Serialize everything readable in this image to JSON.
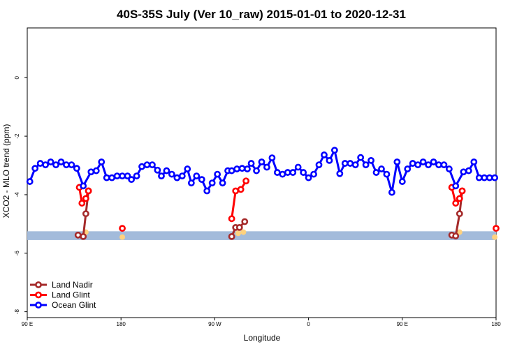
{
  "chart_data": {
    "type": "line",
    "title": "40S-35S July (Ver 10_raw)   2015-01-01 to 2020-12-31",
    "xlabel": "Longitude",
    "ylabel": "XCO2 - MLO trend (ppm)",
    "xlim": [
      90,
      450
    ],
    "ylim": [
      -8.2,
      1.7
    ],
    "x_ticks": [
      {
        "value": 90,
        "label": "90 E"
      },
      {
        "value": 162,
        "label": "180"
      },
      {
        "value": 234,
        "label": "90 W"
      },
      {
        "value": 306,
        "label": "0"
      },
      {
        "value": 378,
        "label": "90 E"
      },
      {
        "value": 450,
        "label": "180"
      }
    ],
    "y_ticks": [
      {
        "value": -8,
        "label": "-8"
      },
      {
        "value": -6,
        "label": "-6"
      },
      {
        "value": -4,
        "label": "-4"
      },
      {
        "value": -2,
        "label": "-2"
      },
      {
        "value": 0,
        "label": "0"
      }
    ],
    "band": {
      "y_low": -5.55,
      "y_high": -5.25,
      "color": "#a3bbdb"
    },
    "legend_position": "bottom-left",
    "grid": false,
    "series": [
      {
        "name": "Land Nadir",
        "color": "#a52a2a",
        "segments": [
          [
            [
              129,
              -5.38
            ],
            [
              133,
              -5.43
            ],
            [
              135,
              -4.65
            ],
            [
              137,
              -3.87
            ]
          ],
          [
            [
              247,
              -5.43
            ],
            [
              250,
              -5.12
            ],
            [
              253,
              -5.12
            ],
            [
              257,
              -4.92
            ]
          ],
          [
            [
              416,
              -5.38
            ],
            [
              419,
              -5.41
            ],
            [
              422,
              -4.65
            ],
            [
              424,
              -3.87
            ]
          ]
        ]
      },
      {
        "name": "Land Glint",
        "color": "#ff0000",
        "segments": [
          [
            [
              130,
              -3.75
            ],
            [
              132,
              -4.29
            ],
            [
              135,
              -4.13
            ],
            [
              137,
              -3.87
            ]
          ],
          [
            [
              163,
              -5.15
            ]
          ],
          [
            [
              247,
              -4.82
            ],
            [
              250,
              -3.87
            ],
            [
              254,
              -3.82
            ],
            [
              258,
              -3.53
            ]
          ],
          [
            [
              416,
              -3.75
            ],
            [
              419,
              -4.29
            ],
            [
              422,
              -4.13
            ],
            [
              424,
              -3.87
            ]
          ],
          [
            [
              450,
              -5.15
            ]
          ]
        ]
      },
      {
        "name": "Ocean Glint",
        "color": "#0000ff",
        "segments": [
          [
            [
              92,
              -3.55
            ],
            [
              96,
              -3.1
            ],
            [
              100,
              -2.93
            ],
            [
              104,
              -2.98
            ],
            [
              108,
              -2.88
            ],
            [
              112,
              -2.98
            ],
            [
              116,
              -2.88
            ],
            [
              120,
              -2.98
            ],
            [
              124,
              -2.98
            ],
            [
              128,
              -3.1
            ],
            [
              133,
              -3.7
            ],
            [
              139,
              -3.22
            ],
            [
              143,
              -3.18
            ],
            [
              147,
              -2.88
            ],
            [
              151,
              -3.42
            ],
            [
              155,
              -3.42
            ],
            [
              159,
              -3.36
            ],
            [
              163,
              -3.36
            ],
            [
              167,
              -3.36
            ],
            [
              170,
              -3.48
            ],
            [
              174,
              -3.36
            ],
            [
              178,
              -3.04
            ],
            [
              182,
              -2.98
            ],
            [
              186,
              -2.98
            ],
            [
              190,
              -3.16
            ],
            [
              193,
              -3.36
            ],
            [
              197,
              -3.18
            ],
            [
              201,
              -3.3
            ],
            [
              205,
              -3.42
            ],
            [
              209,
              -3.36
            ],
            [
              213,
              -3.12
            ],
            [
              216,
              -3.6
            ],
            [
              220,
              -3.36
            ],
            [
              224,
              -3.48
            ],
            [
              228,
              -3.87
            ],
            [
              232,
              -3.6
            ],
            [
              236,
              -3.3
            ],
            [
              240,
              -3.6
            ],
            [
              244,
              -3.18
            ],
            [
              247,
              -3.18
            ],
            [
              251,
              -3.12
            ],
            [
              255,
              -3.1
            ],
            [
              259,
              -3.12
            ],
            [
              262,
              -2.93
            ],
            [
              266,
              -3.18
            ],
            [
              270,
              -2.88
            ],
            [
              274,
              -3.06
            ],
            [
              278,
              -2.74
            ],
            [
              282,
              -3.24
            ],
            [
              286,
              -3.3
            ],
            [
              290,
              -3.24
            ],
            [
              294,
              -3.24
            ],
            [
              298,
              -3.06
            ],
            [
              302,
              -3.24
            ],
            [
              306,
              -3.42
            ],
            [
              310,
              -3.3
            ],
            [
              314,
              -2.98
            ],
            [
              318,
              -2.64
            ],
            [
              322,
              -2.83
            ],
            [
              326,
              -2.48
            ],
            [
              330,
              -3.28
            ],
            [
              334,
              -2.93
            ],
            [
              338,
              -2.93
            ],
            [
              342,
              -2.98
            ],
            [
              346,
              -2.73
            ],
            [
              350,
              -2.98
            ],
            [
              354,
              -2.83
            ],
            [
              358,
              -3.24
            ],
            [
              362,
              -3.12
            ],
            [
              366,
              -3.3
            ],
            [
              370,
              -3.92
            ],
            [
              374,
              -2.88
            ],
            [
              378,
              -3.55
            ],
            [
              382,
              -3.12
            ],
            [
              386,
              -2.93
            ],
            [
              390,
              -2.98
            ],
            [
              394,
              -2.88
            ],
            [
              398,
              -2.98
            ],
            [
              402,
              -2.88
            ],
            [
              406,
              -2.98
            ],
            [
              410,
              -2.98
            ],
            [
              414,
              -3.12
            ],
            [
              419,
              -3.7
            ],
            [
              425,
              -3.22
            ],
            [
              429,
              -3.18
            ],
            [
              433,
              -2.88
            ],
            [
              437,
              -3.42
            ],
            [
              441,
              -3.42
            ],
            [
              445,
              -3.42
            ],
            [
              449,
              -3.42
            ]
          ]
        ]
      }
    ],
    "markers": [
      {
        "x": 135,
        "y": -5.28,
        "color": "#ffd27f"
      },
      {
        "x": 163,
        "y": -5.45,
        "color": "#ffd27f"
      },
      {
        "x": 252,
        "y": -5.32,
        "color": "#ffd27f"
      },
      {
        "x": 256,
        "y": -5.28,
        "color": "#ffd27f"
      },
      {
        "x": 422,
        "y": -5.28,
        "color": "#ffd27f"
      },
      {
        "x": 449,
        "y": -5.45,
        "color": "#ffd27f"
      }
    ]
  }
}
